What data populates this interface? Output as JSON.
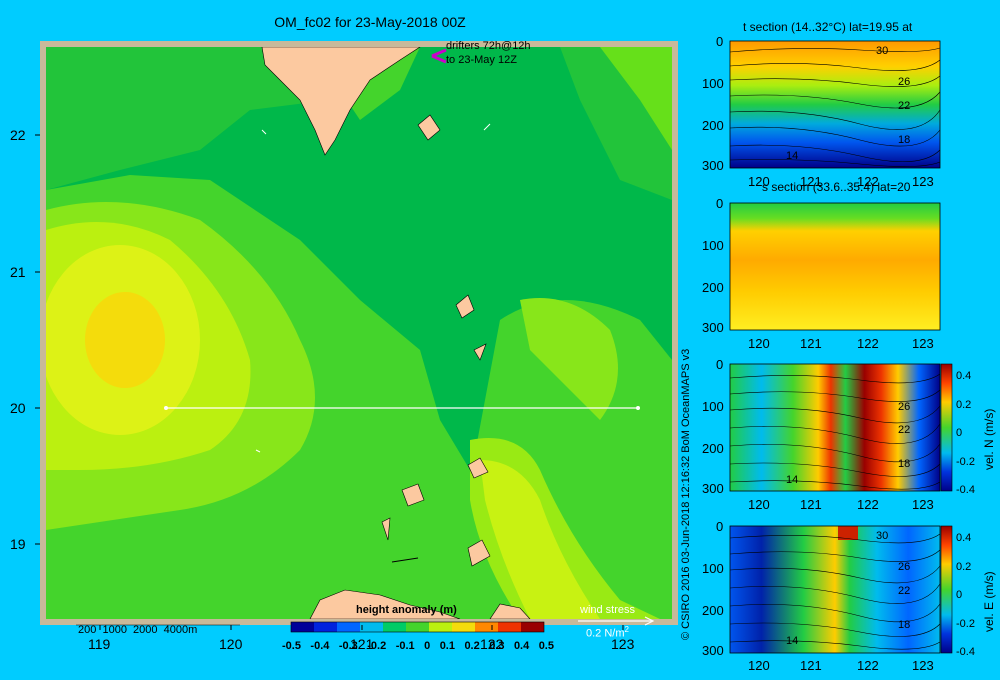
{
  "title": "OM_fc02 for 23-May-2018 00Z",
  "map": {
    "x_ticks": [
      "119",
      "120",
      "121",
      "122",
      "123"
    ],
    "y_ticks": [
      "22",
      "21",
      "20",
      "19"
    ],
    "drifters_line1": "drifters 72h@12h",
    "drifters_line2": "to 23-May 12Z",
    "depth_legend": "200  1000  2000  4000m",
    "wind_stress_label": "wind stress",
    "wind_stress_value": "0.2 N/m",
    "wind_stress_exp": "2",
    "colorbar_title": "height anomaly (m)",
    "colorbar_ticks": [
      "-0.5",
      "-0.4",
      "-0.3",
      "-0.2",
      "-0.1",
      "0",
      "0.1",
      "0.2",
      "0.3",
      "0.4",
      "0.5"
    ],
    "colors": {
      "frame": "#c8b99a",
      "land": "#fcc9a0",
      "section_line": "#ffffff"
    }
  },
  "credit": "© CSIRO 2016   03-Jun-2018 12:16:32 BoM OceanMAPS v3",
  "panels": [
    {
      "title": "t section (14..32°C) lat=19.95 at",
      "y_ticks": [
        "0",
        "100",
        "200",
        "300"
      ],
      "x_ticks": [
        "120",
        "121",
        "122",
        "123"
      ],
      "contour_labels": [
        "30",
        "26",
        "22",
        "18",
        "14"
      ]
    },
    {
      "title": "s section (33.6..35.4) lat=20",
      "y_ticks": [
        "0",
        "100",
        "200",
        "300"
      ],
      "x_ticks": [
        "120",
        "121",
        "122",
        "123"
      ],
      "contour_labels": []
    },
    {
      "title": "",
      "y_ticks": [
        "0",
        "100",
        "200",
        "300"
      ],
      "x_ticks": [
        "120",
        "121",
        "122",
        "123"
      ],
      "contour_labels": [
        "26",
        "22",
        "18",
        "14"
      ],
      "cbar_label": "vel. N (m/s)",
      "cbar_ticks": [
        "0.4",
        "0.2",
        "0",
        "-0.2",
        "-0.4"
      ]
    },
    {
      "title": "",
      "y_ticks": [
        "0",
        "100",
        "200",
        "300"
      ],
      "x_ticks": [
        "120",
        "121",
        "122",
        "123"
      ],
      "contour_labels": [
        "30",
        "26",
        "22",
        "18",
        "14"
      ],
      "cbar_label": "vel. E (m/s)",
      "cbar_ticks": [
        "0.4",
        "0.2",
        "0",
        "-0.2",
        "-0.4"
      ]
    }
  ]
}
